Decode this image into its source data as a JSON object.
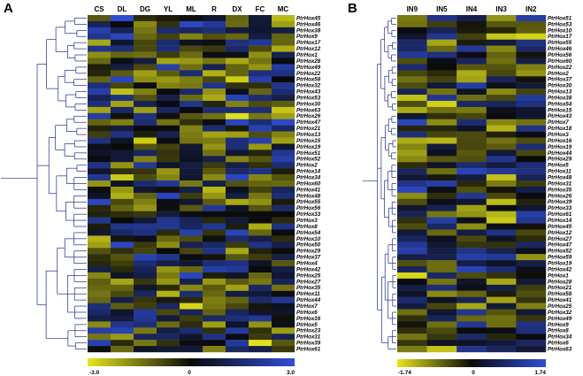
{
  "chart_data": [
    {
      "type": "heatmap",
      "panel_label": "A",
      "columns": [
        "CS",
        "DL",
        "DG",
        "YL",
        "ML",
        "R",
        "DX",
        "FC",
        "MC"
      ],
      "rows": [
        "PtrHox45",
        "PtrHox46",
        "PtrHox38",
        "PtrHox9",
        "PtrHox17",
        "PtrHox12",
        "PtrHox1",
        "PtrHox28",
        "PtrHox49",
        "PtrHox22",
        "PtrHox58",
        "PtrHox32",
        "PtrHox43",
        "PtrHox53",
        "PtrHox30",
        "PtrHox63",
        "PtrHox26",
        "PtrHox47",
        "PtrHox21",
        "PtrHox13",
        "PtrHox15",
        "PtrHox19",
        "PtrHox51",
        "PtrHox52",
        "PtrHox2",
        "PtrHox14",
        "PtrHox34",
        "PtrHox60",
        "PtrHox41",
        "PtrHox48",
        "PtrHox55",
        "PtrHox56",
        "PtrHox33",
        "PtrHox3",
        "PtrHox8",
        "PtrHox54",
        "PtrHox10",
        "PtrHox50",
        "PtrHox29",
        "PtrHox37",
        "PtrHox4",
        "PtrHox42",
        "PtrHox25",
        "PtrHox27",
        "PtrHox35",
        "PtrHox11",
        "PtrHox44",
        "PtrHox7",
        "PtrHox6",
        "PtrHox16",
        "PtrHox5",
        "PtrHox23",
        "PtrHox31",
        "PtrHox39",
        "PtrHox61"
      ],
      "colorbar": {
        "min": -3.0,
        "mid": 0,
        "max": 3.0,
        "labels": [
          "-3.0",
          "0",
          "3.0"
        ]
      },
      "colors": {
        "low": "#e6e61a",
        "mid": "#0a0a0a",
        "high": "#2f4ed6"
      }
    },
    {
      "type": "heatmap",
      "panel_label": "B",
      "columns": [
        "IN9",
        "IN5",
        "IN4",
        "IN3",
        "IN2"
      ],
      "rows": [
        "PtrHox51",
        "PtrHox53",
        "PtrHox10",
        "PtrHox17",
        "PtrHox55",
        "PtrHox46",
        "PtrHox56",
        "PtrHox60",
        "PtrHox22",
        "PtrHox2",
        "PtrHox37",
        "PtrHox30",
        "PtrHox13",
        "PtrHox38",
        "PtrHox54",
        "PtrHox15",
        "PtrHox43",
        "PtrHox7",
        "PtrHox18",
        "PtrHox3",
        "PtrHox16",
        "PtrHox19",
        "PtrHox44",
        "PtrHox29",
        "PtrHox5",
        "PtrHox11",
        "PtrHox48",
        "PtrHox31",
        "PtrHox35",
        "PtrHox26",
        "PtrHox39",
        "PtrHox33",
        "PtrHox61",
        "PtrHox14",
        "PtrHox45",
        "PtrHox12",
        "PtrHox27",
        "PtrHox47",
        "PtrHox52",
        "PtrHox59",
        "PtrHox19",
        "PtrHox42",
        "PtrHox1",
        "PtrHox28",
        "PtrHox21",
        "PtrHox58",
        "PtrHox41",
        "PtrHox25",
        "PtrHox32",
        "PtrHox49",
        "PtrHox9",
        "PtrHox8",
        "PtrHox34",
        "PtrHox6",
        "PtrHox63"
      ],
      "colorbar": {
        "min": -1.74,
        "mid": 0,
        "max": 1.74,
        "labels": [
          "-1.74",
          "0",
          "1.74"
        ]
      },
      "colors": {
        "low": "#e6e61a",
        "mid": "#0a0a0a",
        "high": "#2f4ed6"
      }
    }
  ]
}
